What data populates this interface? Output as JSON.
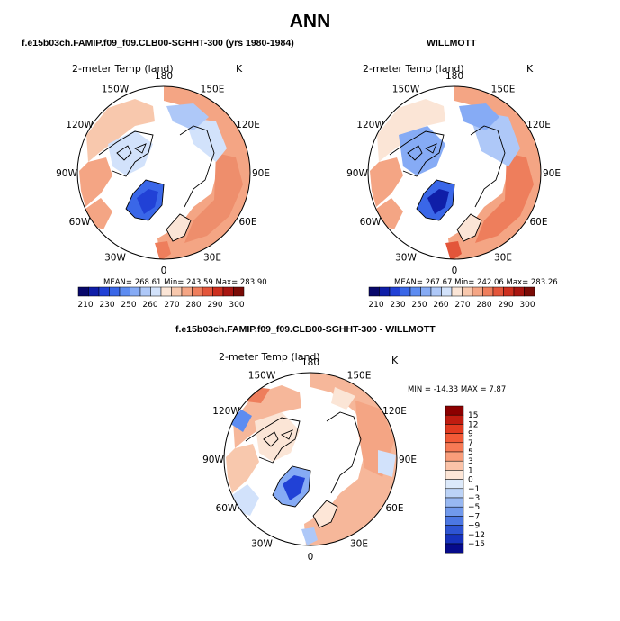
{
  "page_title": "ANN",
  "panels": [
    {
      "case": "f.e15b03ch.FAMIP.f09_f09.CLB00-SGHHT-300 (yrs 1980-1984)",
      "variable": "2-meter Temp (land)",
      "units": "K",
      "stats": "MEAN= 268.61   Min= 243.59   Max= 283.90"
    },
    {
      "case": "WILLMOTT",
      "variable": "2-meter Temp (land)",
      "units": "K",
      "stats": "MEAN= 267.67   Min= 242.06   Max= 283.26"
    },
    {
      "case": "f.e15b03ch.FAMIP.f09_f09.CLB00-SGHHT-300 - WILLMOTT",
      "variable": "2-meter Temp (land)",
      "units": "K",
      "stats": "MIN = -14.33  MAX =    7.87"
    }
  ],
  "longitude_labels": [
    "180",
    "150E",
    "120E",
    "90E",
    "60E",
    "30E",
    "0",
    "30W",
    "60W",
    "90W",
    "120W",
    "150W"
  ],
  "abs_colorbar": {
    "tick_labels": [
      "210",
      "230",
      "250",
      "260",
      "270",
      "280",
      "290",
      "300"
    ],
    "colors": [
      "#08086b",
      "#0f1ea8",
      "#2141d6",
      "#3a67e8",
      "#5d8cf1",
      "#86abf5",
      "#aec8f8",
      "#d2e2fb",
      "#fbe5d6",
      "#f8c8ad",
      "#f4a584",
      "#ee7e5c",
      "#e3553a",
      "#cc2f1e",
      "#a81510",
      "#7a0b06"
    ]
  },
  "diff_colorbar": {
    "levels": [
      "15",
      "12",
      "9",
      "7",
      "5",
      "3",
      "1",
      "0",
      "−1",
      "−3",
      "−5",
      "−7",
      "−9",
      "−12",
      "−15"
    ],
    "colors": [
      "#8c0000",
      "#c01c10",
      "#e23a20",
      "#f25a37",
      "#f77a55",
      "#f99d7a",
      "#fbc3a8",
      "#fde6d7",
      "#dce9fa",
      "#bcd3f7",
      "#98b8f2",
      "#7199ec",
      "#4c77e3",
      "#2e54d3",
      "#1732bd",
      "#060b8c"
    ]
  },
  "colors": {
    "land_warm": "#f4a584",
    "land_mid": "#fbd2bc",
    "land_cool": "#d2e2fb",
    "ice_blue": "#4f7ee6",
    "ice_dark": "#2b4fd0",
    "diff_base": "#f6b79a"
  }
}
